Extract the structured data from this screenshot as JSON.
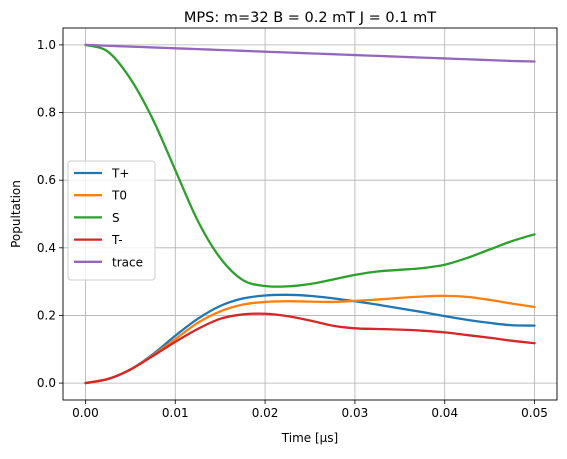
{
  "chart_data": {
    "type": "line",
    "title": "MPS: m=32 B = 0.2 mT J = 0.1 mT",
    "xlabel": "Time [μs]",
    "ylabel": "Popultation",
    "xlim": [
      -0.0025,
      0.0525
    ],
    "ylim": [
      -0.05,
      1.05
    ],
    "xticks": [
      0.0,
      0.01,
      0.02,
      0.03,
      0.04,
      0.05
    ],
    "xtick_labels": [
      "0.00",
      "0.01",
      "0.02",
      "0.03",
      "0.04",
      "0.05"
    ],
    "yticks": [
      0.0,
      0.2,
      0.4,
      0.6,
      0.8,
      1.0
    ],
    "ytick_labels": [
      "0.0",
      "0.2",
      "0.4",
      "0.6",
      "0.8",
      "1.0"
    ],
    "grid": true,
    "legend_position": "center-left",
    "x": [
      0.0,
      0.0025,
      0.005,
      0.0075,
      0.01,
      0.0125,
      0.015,
      0.0175,
      0.02,
      0.0225,
      0.025,
      0.0275,
      0.03,
      0.0325,
      0.035,
      0.0375,
      0.04,
      0.0425,
      0.045,
      0.0475,
      0.05
    ],
    "series": [
      {
        "name": "T+",
        "color": "#1f77b4",
        "values": [
          0.0,
          0.012,
          0.04,
          0.085,
          0.14,
          0.19,
          0.228,
          0.25,
          0.259,
          0.261,
          0.258,
          0.251,
          0.242,
          0.232,
          0.221,
          0.21,
          0.198,
          0.187,
          0.178,
          0.171,
          0.17
        ]
      },
      {
        "name": "T0",
        "color": "#ff7f0e",
        "values": [
          0.0,
          0.012,
          0.04,
          0.082,
          0.13,
          0.178,
          0.212,
          0.232,
          0.24,
          0.242,
          0.241,
          0.24,
          0.243,
          0.247,
          0.252,
          0.256,
          0.258,
          0.255,
          0.246,
          0.235,
          0.225
        ]
      },
      {
        "name": "S",
        "color": "#2ca02c",
        "values": [
          1.0,
          0.98,
          0.9,
          0.78,
          0.63,
          0.48,
          0.37,
          0.305,
          0.287,
          0.286,
          0.293,
          0.306,
          0.32,
          0.33,
          0.335,
          0.34,
          0.35,
          0.37,
          0.395,
          0.42,
          0.44
        ]
      },
      {
        "name": "T-",
        "color": "#d62728",
        "values": [
          0.0,
          0.012,
          0.04,
          0.08,
          0.122,
          0.16,
          0.19,
          0.203,
          0.205,
          0.198,
          0.185,
          0.17,
          0.162,
          0.16,
          0.158,
          0.155,
          0.15,
          0.142,
          0.134,
          0.125,
          0.118
        ]
      },
      {
        "name": "trace",
        "color": "#9467bd",
        "values": [
          1.0,
          0.9975,
          0.995,
          0.9925,
          0.99,
          0.9875,
          0.985,
          0.9825,
          0.98,
          0.9775,
          0.975,
          0.9725,
          0.97,
          0.9675,
          0.965,
          0.9625,
          0.96,
          0.9575,
          0.955,
          0.9525,
          0.951
        ]
      }
    ]
  }
}
